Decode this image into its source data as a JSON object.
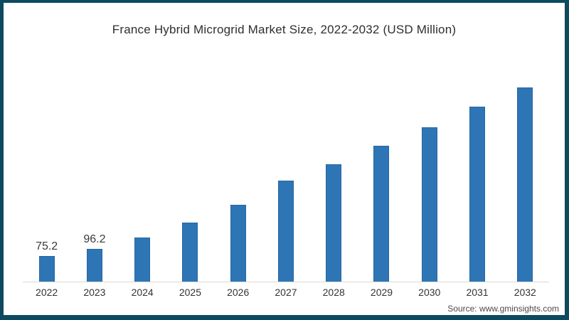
{
  "page": {
    "title": "France Hybrid Microgrid Market Size, 2022-2032 (USD Million)",
    "source_text": "Source: www.gminsights.com"
  },
  "colors": {
    "bar_fill": "#2e75b6",
    "bar_edge": "#27679f",
    "frame_border": "#0d4a5f",
    "axis_line": "#d9d9d9",
    "title_text": "#2e2e2e",
    "tick_text": "#333333",
    "source_text": "#4a4a4a"
  },
  "chart_data": {
    "type": "bar",
    "title": "France Hybrid Microgrid Market Size, 2022-2032 (USD Million)",
    "categories": [
      "2022",
      "2023",
      "2024",
      "2025",
      "2026",
      "2027",
      "2028",
      "2029",
      "2030",
      "2031",
      "2032"
    ],
    "values": [
      75.2,
      96.2,
      128,
      171,
      224,
      293,
      342,
      395,
      449,
      508,
      565
    ],
    "data_labels": [
      "75.2",
      "96.2",
      "",
      "",
      "",
      "",
      "",
      "",
      "",
      "",
      ""
    ],
    "xlabel": "",
    "ylabel": "",
    "ylim": [
      0,
      600
    ],
    "grid": false,
    "legend": "none",
    "y_axis_visible": false,
    "source": "Source: www.gminsights.com"
  }
}
